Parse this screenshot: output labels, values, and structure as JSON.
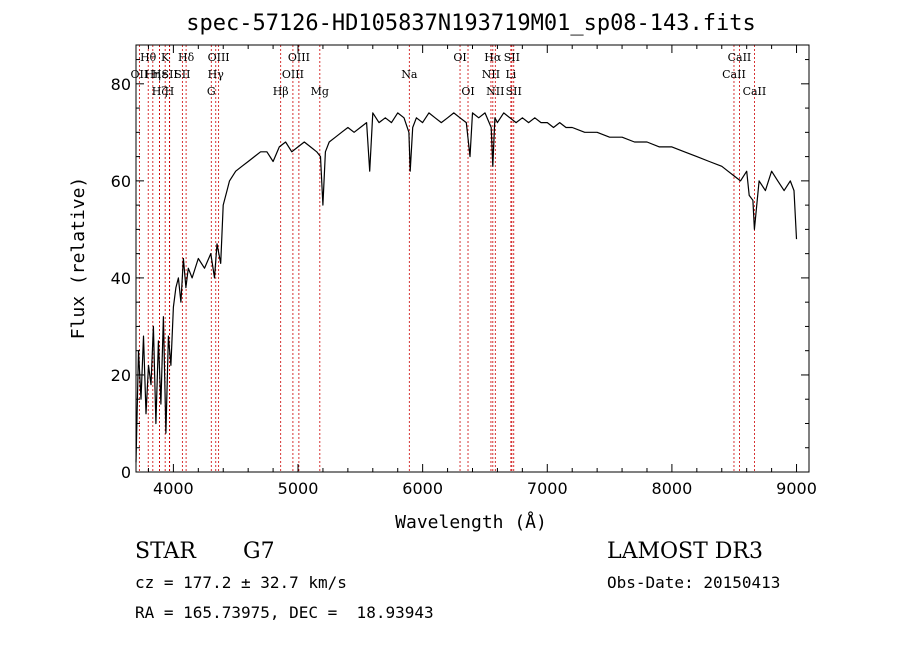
{
  "chart_data": {
    "type": "line",
    "title": "spec-57126-HD105837N193719M01_sp08-143.fits",
    "xlabel": "Wavelength (Å)",
    "ylabel": "Flux (relative)",
    "xlim": [
      3700,
      9100
    ],
    "ylim": [
      0,
      88
    ],
    "xticks": [
      4000,
      5000,
      6000,
      7000,
      8000,
      9000
    ],
    "yticks": [
      0,
      20,
      40,
      60,
      80
    ],
    "grid": false,
    "series": [
      {
        "name": "flux",
        "color": "#000000",
        "x": [
          3700,
          3720,
          3740,
          3760,
          3780,
          3800,
          3820,
          3840,
          3860,
          3880,
          3900,
          3920,
          3940,
          3960,
          3980,
          4000,
          4020,
          4040,
          4060,
          4080,
          4100,
          4120,
          4150,
          4200,
          4250,
          4300,
          4330,
          4350,
          4380,
          4400,
          4430,
          4450,
          4500,
          4550,
          4600,
          4650,
          4700,
          4750,
          4800,
          4850,
          4900,
          4950,
          5000,
          5050,
          5100,
          5150,
          5180,
          5200,
          5220,
          5250,
          5300,
          5350,
          5400,
          5450,
          5500,
          5550,
          5575,
          5600,
          5650,
          5700,
          5750,
          5800,
          5850,
          5890,
          5900,
          5920,
          5950,
          6000,
          6050,
          6100,
          6150,
          6200,
          6250,
          6300,
          6350,
          6380,
          6400,
          6450,
          6500,
          6550,
          6563,
          6580,
          6600,
          6650,
          6700,
          6750,
          6800,
          6850,
          6900,
          6950,
          7000,
          7050,
          7100,
          7150,
          7200,
          7300,
          7400,
          7500,
          7600,
          7700,
          7800,
          7900,
          8000,
          8100,
          8200,
          8300,
          8400,
          8450,
          8500,
          8550,
          8600,
          8620,
          8650,
          8662,
          8700,
          8750,
          8800,
          8850,
          8900,
          8950,
          8980,
          9000
        ],
        "values": [
          2,
          25,
          15,
          28,
          12,
          22,
          18,
          30,
          10,
          27,
          14,
          32,
          8,
          28,
          22,
          34,
          38,
          40,
          35,
          44,
          38,
          42,
          40,
          44,
          42,
          45,
          40,
          47,
          43,
          55,
          58,
          60,
          62,
          63,
          64,
          65,
          66,
          66,
          64,
          67,
          68,
          66,
          67,
          68,
          67,
          66,
          65,
          55,
          66,
          68,
          69,
          70,
          71,
          70,
          71,
          72,
          62,
          74,
          72,
          73,
          72,
          74,
          73,
          70,
          62,
          71,
          73,
          72,
          74,
          73,
          72,
          73,
          74,
          73,
          72,
          65,
          74,
          73,
          74,
          71,
          63,
          73,
          72,
          74,
          73,
          72,
          73,
          72,
          73,
          72,
          72,
          71,
          72,
          71,
          71,
          70,
          70,
          69,
          69,
          68,
          68,
          67,
          67,
          66,
          65,
          64,
          63,
          62,
          61,
          60,
          62,
          57,
          56,
          50,
          60,
          58,
          62,
          60,
          58,
          60,
          58,
          48
        ]
      }
    ],
    "line_markers": [
      {
        "label": "Hθ",
        "x": 3798,
        "row": 1
      },
      {
        "label": "OII",
        "x": 3727,
        "row": 2
      },
      {
        "label": "Hη",
        "x": 3835,
        "row": 2
      },
      {
        "label": "Hε",
        "x": 3889,
        "row": 2
      },
      {
        "label": "K",
        "x": 3934,
        "row": 1
      },
      {
        "label": "SII",
        "x": 3970,
        "row": 2
      },
      {
        "label": "Hζ",
        "x": 3889,
        "row": 3
      },
      {
        "label": "H",
        "x": 3968,
        "row": 3
      },
      {
        "label": "Hδ",
        "x": 4102,
        "row": 1
      },
      {
        "label": "SII",
        "x": 4072,
        "row": 2
      },
      {
        "label": "OIII",
        "x": 4363,
        "row": 1
      },
      {
        "label": "Hγ",
        "x": 4340,
        "row": 2
      },
      {
        "label": "G",
        "x": 4304,
        "row": 3
      },
      {
        "label": "Hβ",
        "x": 4861,
        "row": 3
      },
      {
        "label": "OIII",
        "x": 5007,
        "row": 1
      },
      {
        "label": "OIII",
        "x": 4959,
        "row": 2
      },
      {
        "label": "Mg",
        "x": 5175,
        "row": 3
      },
      {
        "label": "Na",
        "x": 5893,
        "row": 2
      },
      {
        "label": "OI",
        "x": 6300,
        "row": 1
      },
      {
        "label": "OI",
        "x": 6364,
        "row": 3
      },
      {
        "label": "Hα",
        "x": 6563,
        "row": 1
      },
      {
        "label": "SII",
        "x": 6716,
        "row": 1
      },
      {
        "label": "NII",
        "x": 6548,
        "row": 2
      },
      {
        "label": "Li",
        "x": 6708,
        "row": 2
      },
      {
        "label": "NII",
        "x": 6583,
        "row": 3
      },
      {
        "label": "SII",
        "x": 6731,
        "row": 3
      },
      {
        "label": "CaII",
        "x": 8542,
        "row": 1
      },
      {
        "label": "CaII",
        "x": 8498,
        "row": 2
      },
      {
        "label": "CaII",
        "x": 8662,
        "row": 3
      }
    ]
  },
  "info": {
    "object_class": "STAR",
    "subclass": "G7",
    "survey": "LAMOST DR3",
    "redshift": "cz = 177.2 ± 32.7 km/s",
    "obs_date": "Obs-Date: 20150413",
    "coords": "RA = 165.73975, DEC =  18.93943"
  },
  "colors": {
    "marker_line": "#cc0000",
    "spectrum": "#000000",
    "axes": "#000000"
  }
}
